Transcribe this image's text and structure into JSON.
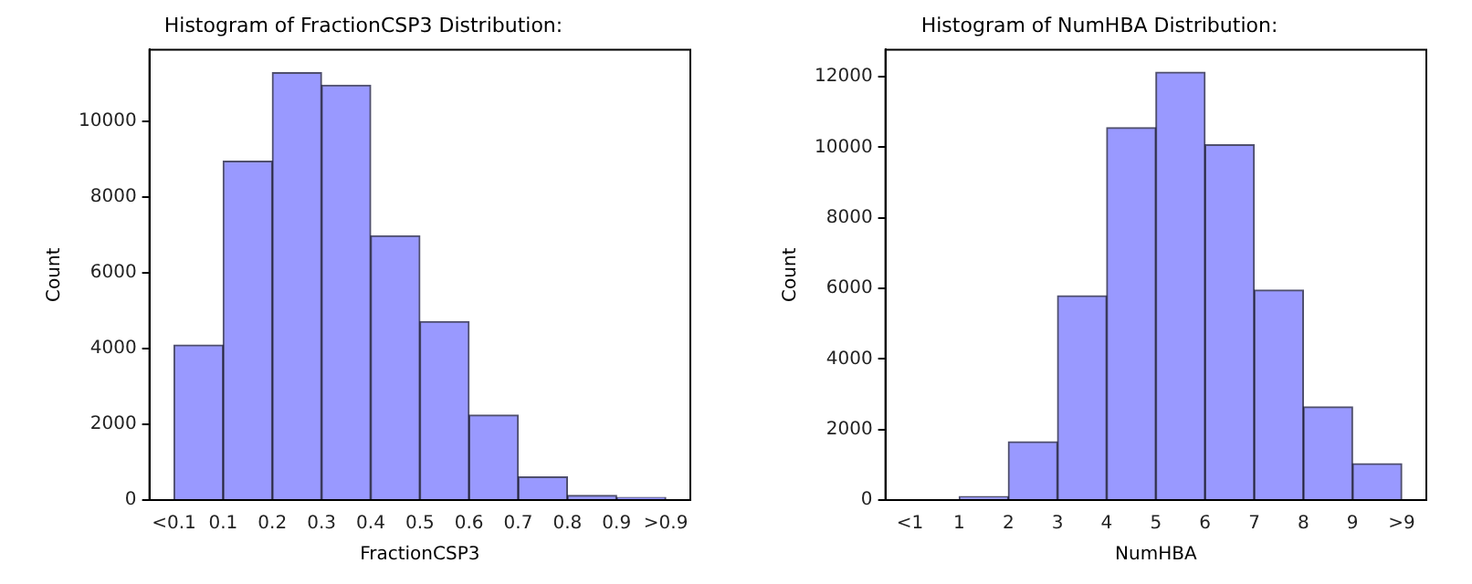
{
  "chart_data": [
    {
      "type": "histogram",
      "title": "Histogram of FractionCSP3 Distribution:",
      "xlabel": "FractionCSP3",
      "ylabel": "Count",
      "bins": [
        0,
        0.1,
        0.2,
        0.3,
        0.4,
        0.5,
        0.6,
        0.7,
        0.8,
        0.9,
        1.0
      ],
      "values": [
        4090,
        8940,
        11270,
        10940,
        6970,
        4710,
        2240,
        610,
        120,
        70
      ],
      "color": "#9999ff",
      "xlim": [
        -0.05,
        1.05
      ],
      "ylim": [
        0,
        11880
      ],
      "xticks": [
        {
          "value": 0,
          "label": "<0.1"
        },
        0.1,
        0.2,
        0.3,
        0.4,
        0.5,
        0.6,
        0.7,
        0.8,
        0.9,
        {
          "value": 1.0,
          "label": ">0.9"
        }
      ],
      "yticks": [
        0,
        2000,
        4000,
        6000,
        8000,
        10000
      ],
      "grid": false,
      "legend": false
    },
    {
      "type": "histogram",
      "title": "Histogram of NumHBA Distribution:",
      "xlabel": "NumHBA",
      "ylabel": "Count",
      "bins": [
        0,
        1,
        2,
        3,
        4,
        5,
        6,
        7,
        8,
        9,
        10
      ],
      "values": [
        0,
        100,
        1650,
        5790,
        10560,
        12130,
        10070,
        5950,
        2640,
        1030
      ],
      "color": "#9999ff",
      "xlim": [
        -0.5,
        10.5
      ],
      "ylim": [
        0,
        12770
      ],
      "xticks": [
        {
          "value": 0,
          "label": "<1"
        },
        1,
        2,
        3,
        4,
        5,
        6,
        7,
        8,
        9,
        {
          "value": 10,
          "label": ">9"
        }
      ],
      "yticks": [
        0,
        2000,
        4000,
        6000,
        8000,
        10000,
        12000
      ],
      "grid": false,
      "legend": false
    }
  ]
}
